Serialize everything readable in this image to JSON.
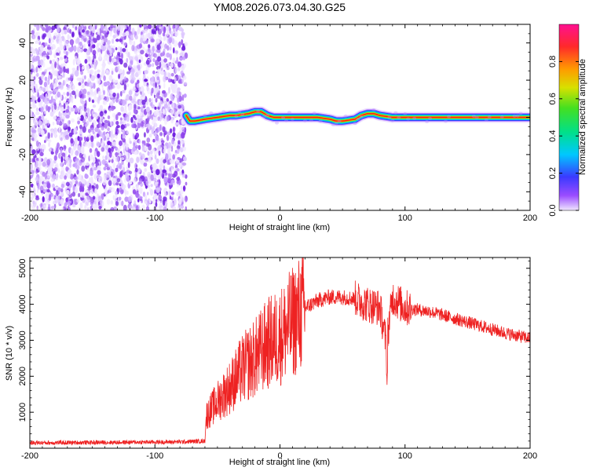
{
  "title": "YM08.2026.073.04.30.G25",
  "colors": {
    "snr_line": "#ee2222",
    "noise_dots": "#7a2ee8",
    "frame": "#000000",
    "background": "#ffffff"
  },
  "chart_data": [
    {
      "type": "heatmap",
      "xlabel": "Height of straight line (km)",
      "ylabel": "Frequency (Hz)",
      "xlim": [
        -200,
        200
      ],
      "ylim": [
        -50,
        50
      ],
      "xticks": [
        -200,
        -100,
        0,
        100,
        200
      ],
      "xtick_labels": [
        "-200",
        "-100",
        "0",
        "100",
        "200"
      ],
      "yticks": [
        -40,
        -20,
        0,
        20,
        40
      ],
      "ytick_labels": [
        "-40",
        "-20",
        "0",
        "20",
        "40"
      ],
      "grid": false,
      "noise_region_x": [
        -200,
        -75
      ],
      "ridge": {
        "x": [
          -75,
          -72,
          -68,
          -60,
          -50,
          -40,
          -35,
          -25,
          -20,
          -15,
          -10,
          -5,
          0,
          10,
          20,
          30,
          40,
          45,
          50,
          60,
          65,
          70,
          75,
          80,
          90,
          100,
          110,
          130,
          150,
          170,
          200
        ],
        "y": [
          1,
          -2,
          -2,
          -1,
          0,
          1,
          1,
          2,
          3,
          3,
          1,
          0,
          0,
          0,
          0,
          0,
          -1,
          -2,
          -2,
          -1,
          1,
          2,
          2,
          1,
          0,
          0,
          0,
          0,
          0,
          0,
          0
        ]
      },
      "colorbar": {
        "label": "Normalized spectral amplitude",
        "range": [
          0,
          1
        ],
        "ticks": [
          0.0,
          0.2,
          0.4,
          0.6,
          0.8
        ],
        "tick_labels": [
          "0.0",
          "0.2",
          "0.4",
          "0.6",
          "0.8"
        ]
      }
    },
    {
      "type": "line",
      "xlabel": "Height of straight line (km)",
      "ylabel": "SNR (10 * v/v)",
      "xlim": [
        -200,
        200
      ],
      "ylim": [
        0,
        5300
      ],
      "xticks": [
        -200,
        -100,
        0,
        100,
        200
      ],
      "xtick_labels": [
        "-200",
        "-100",
        "0",
        "100",
        "200"
      ],
      "yticks": [
        1000,
        2000,
        3000,
        4000,
        5000
      ],
      "ytick_labels": [
        "1000",
        "2000",
        "3000",
        "4000",
        "5000"
      ],
      "grid": false,
      "series": [
        {
          "x": [
            -200,
            -150,
            -100,
            -75,
            -60,
            -59,
            -50,
            -40,
            -30,
            -20,
            -10,
            0,
            10,
            20,
            30,
            40,
            50,
            60,
            70,
            80,
            85,
            90,
            100,
            120,
            140,
            160,
            180,
            200
          ],
          "y": [
            150,
            160,
            170,
            180,
            200,
            900,
            1300,
            1700,
            2200,
            2500,
            2900,
            3100,
            3500,
            3900,
            4100,
            4200,
            4200,
            4150,
            4000,
            3900,
            2900,
            4200,
            3900,
            3800,
            3600,
            3400,
            3200,
            3050
          ]
        }
      ]
    }
  ]
}
